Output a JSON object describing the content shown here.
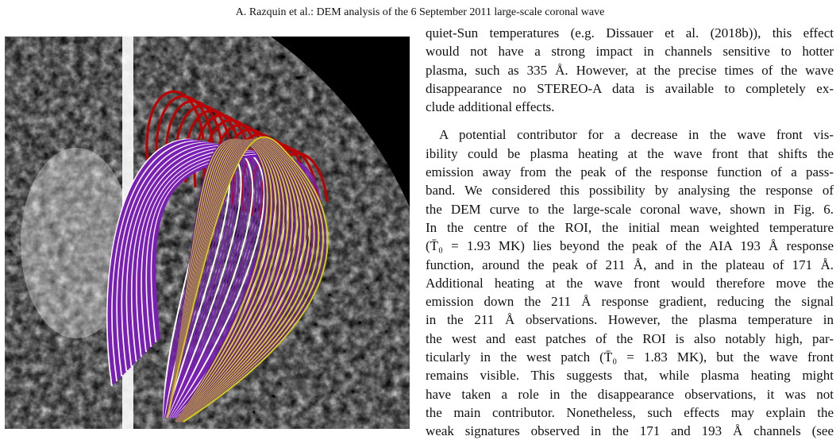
{
  "header": {
    "running_title": "A. Razquin et al.: DEM analysis of the 6 September 2011 large-scale coronal wave"
  },
  "paragraphs": [
    {
      "lines": [
        "quiet-Sun temperatures (e.g. Dissauer et al. (2018b)), this effect",
        "would not have a strong impact in channels sensitive to hotter",
        "plasma, such as 335 Å. However, at the precise times of the wave",
        "disappearance no STEREO-A data is available to completely ex-",
        "clude additional effects."
      ]
    },
    {
      "lines": [
        "A potential contributor for a decrease in the wave front vis-",
        "ibility could be plasma heating at the wave front that shifts the",
        "emission away from the peak of the response function of a pass-",
        "band. We considered this possibility by analysing the response of",
        "the DEM curve to the large-scale coronal wave, shown in Fig. 6.",
        "In the centre of the ROI, the initial mean weighted temperature",
        "(T̄₀ = 1.93 MK) lies beyond the peak of the AIA 193 Å response",
        "function, around the peak of 211 Å, and in the plateau of 171 Å.",
        "Additional heating at the wave front would therefore move the",
        "emission down the 211 Å response gradient, reducing the signal",
        "in the 211 Å observations. However, the plasma temperature in",
        "the west and east patches of the ROI is also notably high, par-",
        "ticularly in the west patch (T̄₀ = 1.83 MK), but the wave front",
        "remains visible. This suggests that, while plasma heating might",
        "have taken a role in the disappearance observations, it was not",
        "the main contributor. Nonetheless, such effects may explain the",
        "weak signatures observed in the 171 and 193 Å channels (see"
      ]
    }
  ]
}
